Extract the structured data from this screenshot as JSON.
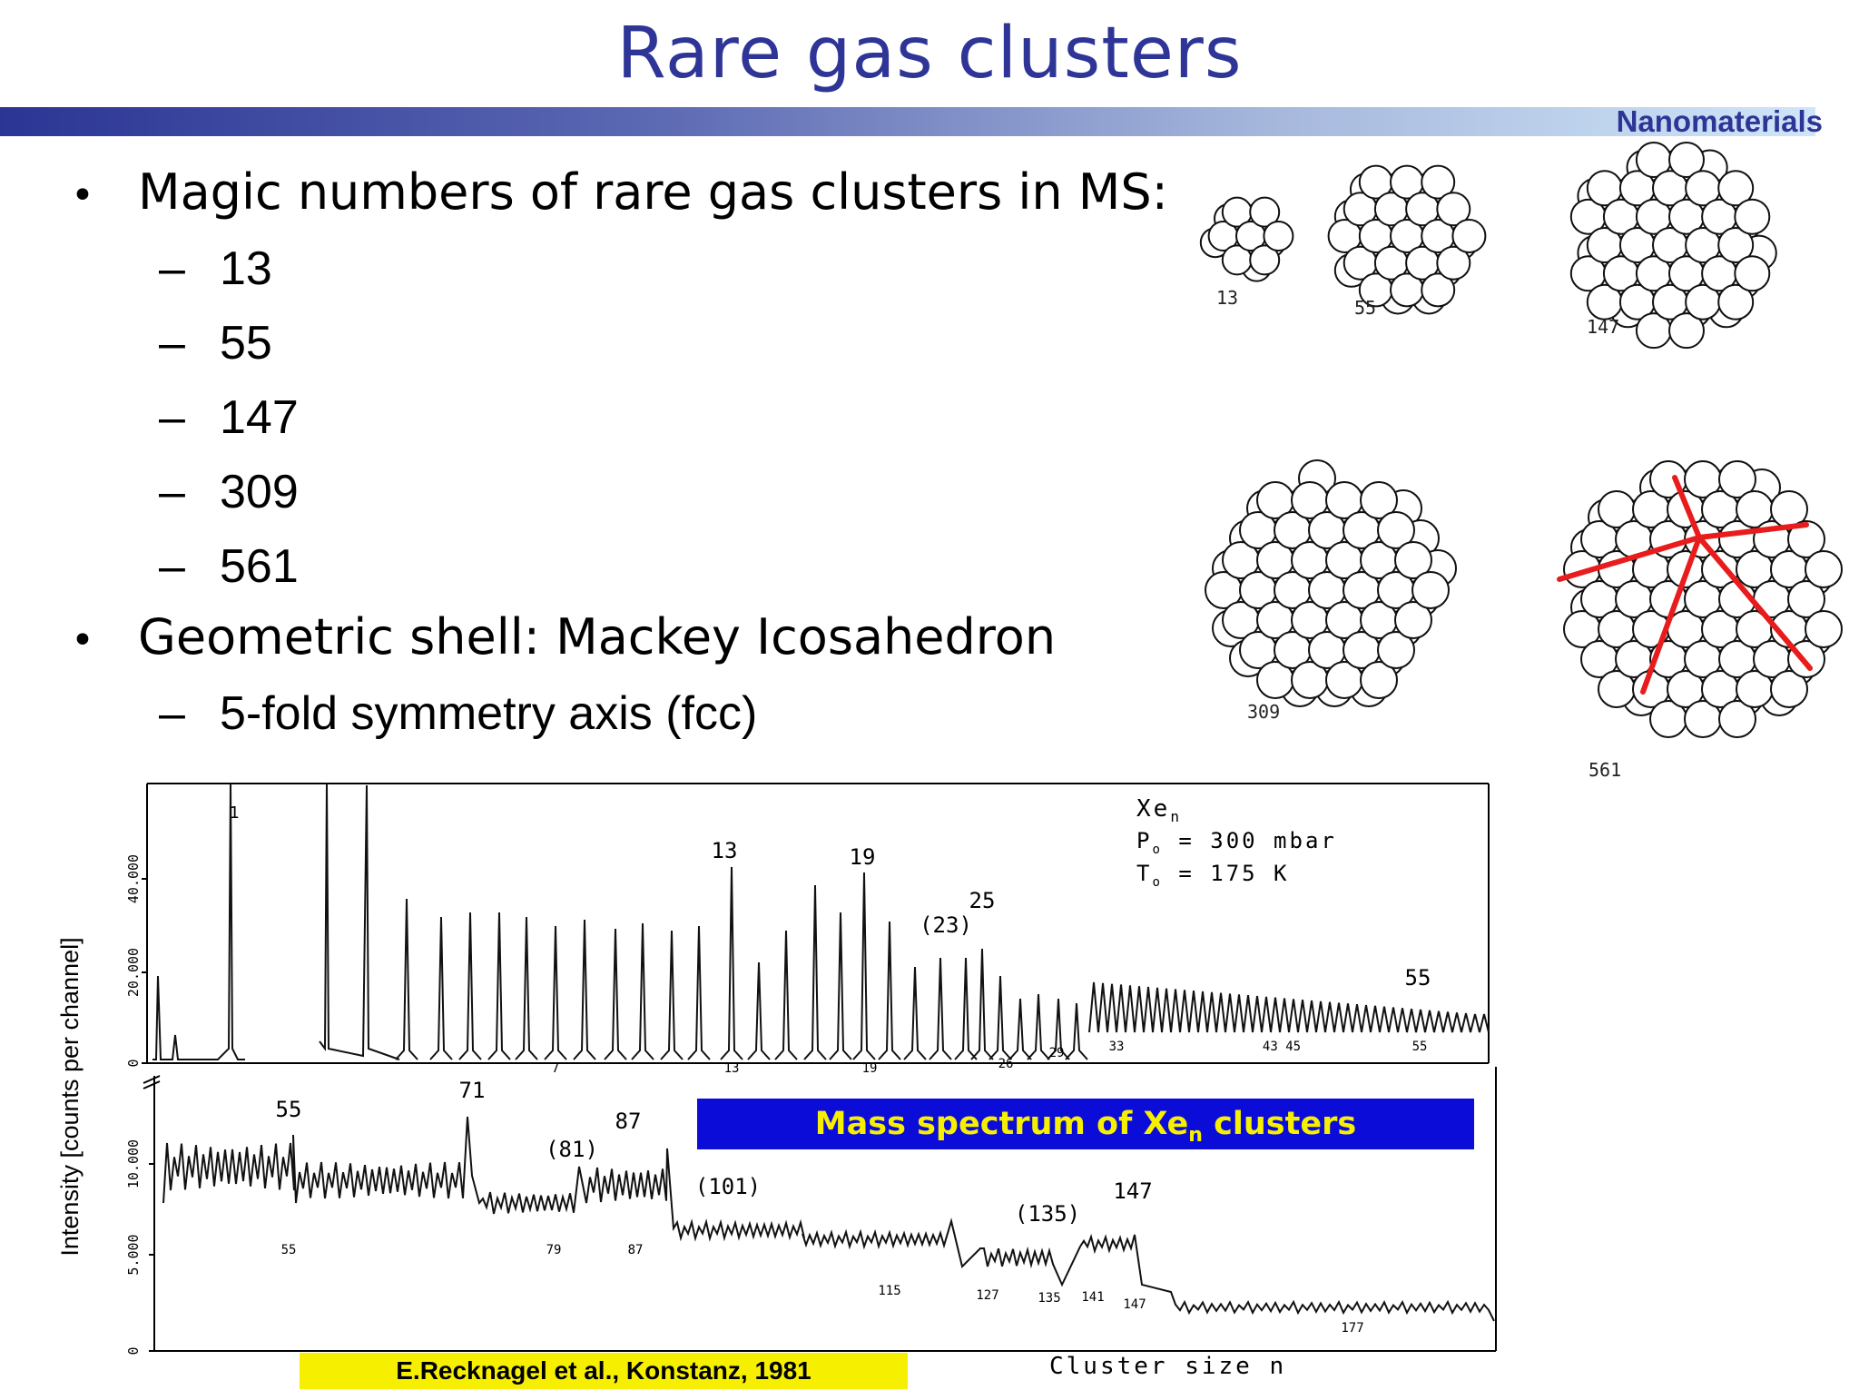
{
  "slide": {
    "title": "Rare gas clusters",
    "brand": "Nanomaterials"
  },
  "bullets": [
    {
      "text": "Magic numbers of rare gas clusters in MS:",
      "items": [
        "13",
        "55",
        "147",
        "309",
        "561"
      ]
    },
    {
      "text": "Geometric shell: Mackey Icosahedron",
      "items": [
        "5-fold symmetry axis (fcc)"
      ]
    }
  ],
  "clusters": {
    "labels": [
      "13",
      "55",
      "147",
      "309",
      "561"
    ]
  },
  "spectrum": {
    "ylabel": "Intensity [counts per channel]",
    "upper_y_ticks": [
      "0",
      "20.000",
      "40.000"
    ],
    "lower_y_ticks": [
      "0",
      "5.000",
      "10.000"
    ],
    "legend_species": "Xe",
    "legend_species_sub": "n",
    "legend_p": "P",
    "legend_p_sub": "o",
    "legend_p_value": "= 300 mbar",
    "legend_t": "T",
    "legend_t_sub": "o",
    "legend_t_value": "= 175 K",
    "upper_peak_labels": [
      "1",
      "13",
      "19",
      "(23)",
      "25",
      "55"
    ],
    "upper_axis_labels": [
      "7",
      "13",
      "19",
      "26",
      "29",
      "33",
      "43 45",
      "55"
    ],
    "lower_peak_labels": [
      "55",
      "71",
      "(81)",
      "87",
      "(101)",
      "(135)",
      "147"
    ],
    "lower_axis_labels": [
      "55",
      "79",
      "87",
      "115",
      "127",
      "135",
      "141",
      "147",
      "177"
    ],
    "caption_main": "Mass spectrum of Xe",
    "caption_sub": "n",
    "caption_tail": "clusters",
    "xlabel": "Cluster size   n",
    "credit": "E.Recknagel et al., Konstanz, 1981"
  }
}
